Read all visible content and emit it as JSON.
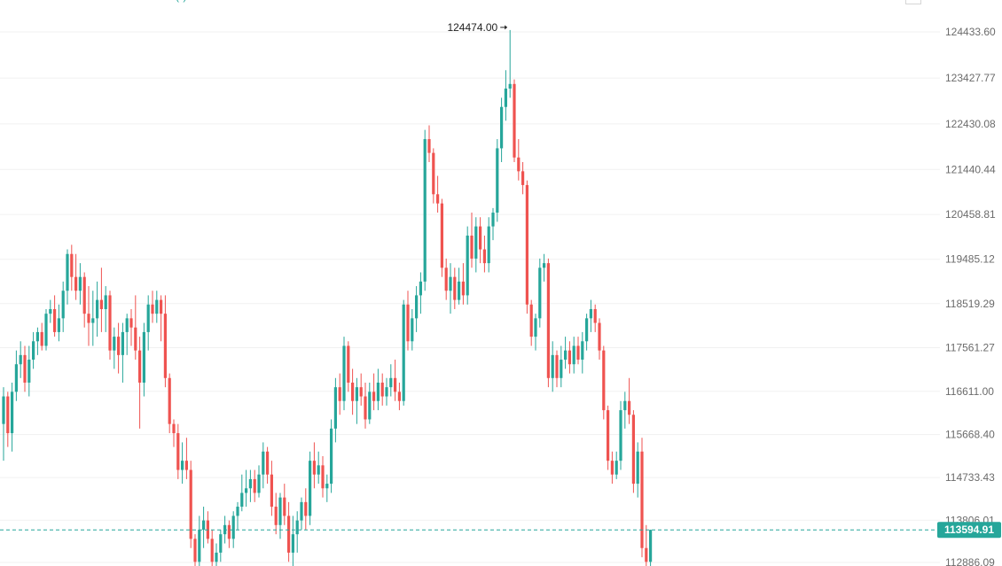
{
  "colors": {
    "up": "#26a69a",
    "down": "#ef5350",
    "current_line": "#26a69a",
    "grid": "#f1f1f1"
  },
  "header_fragment": "(      )",
  "chart_data": {
    "type": "candlestick",
    "title": "",
    "xlabel": "",
    "ylabel": "",
    "y_ticks": [
      "124433.60",
      "123427.77",
      "122430.08",
      "121440.44",
      "120458.81",
      "119485.12",
      "118519.29",
      "117561.27",
      "116611.00",
      "115668.40",
      "114733.43",
      "113806.01",
      "112886.09"
    ],
    "ylim": [
      112886.09,
      124433.6
    ],
    "peak_label": "124474.00",
    "current_price": "113594.91",
    "candles_ohlc": [
      [
        115900,
        116700,
        115100,
        116500
      ],
      [
        116500,
        116600,
        115400,
        115700
      ],
      [
        115700,
        116800,
        115300,
        116600
      ],
      [
        116600,
        117500,
        116400,
        117200
      ],
      [
        117200,
        117700,
        116900,
        117400
      ],
      [
        117400,
        117600,
        116600,
        116800
      ],
      [
        116800,
        117600,
        116500,
        117300
      ],
      [
        117300,
        117900,
        117100,
        117700
      ],
      [
        117700,
        118000,
        117400,
        117900
      ],
      [
        117900,
        118100,
        117500,
        117600
      ],
      [
        117600,
        118400,
        117500,
        118300
      ],
      [
        118300,
        118600,
        118100,
        118400
      ],
      [
        118400,
        118700,
        117800,
        117900
      ],
      [
        117900,
        118500,
        117700,
        118200
      ],
      [
        118200,
        119000,
        117900,
        118800
      ],
      [
        118800,
        119700,
        118500,
        119600
      ],
      [
        119600,
        119800,
        118800,
        119100
      ],
      [
        119100,
        119600,
        118600,
        118800
      ],
      [
        118800,
        119400,
        118500,
        119100
      ],
      [
        119100,
        119200,
        118000,
        118300
      ],
      [
        118300,
        118900,
        117600,
        118100
      ],
      [
        118100,
        118800,
        117600,
        118200
      ],
      [
        118200,
        119000,
        117800,
        118600
      ],
      [
        118600,
        119300,
        117900,
        118400
      ],
      [
        118400,
        118900,
        117900,
        118700
      ],
      [
        118700,
        118800,
        117300,
        117500
      ],
      [
        117500,
        118000,
        117100,
        117800
      ],
      [
        117800,
        118100,
        117000,
        117400
      ],
      [
        117400,
        118100,
        116800,
        117900
      ],
      [
        117900,
        118300,
        117400,
        118200
      ],
      [
        118200,
        118400,
        117600,
        118000
      ],
      [
        118000,
        118700,
        117300,
        117500
      ],
      [
        117500,
        117800,
        115800,
        116800
      ],
      [
        116800,
        118100,
        116500,
        117900
      ],
      [
        117900,
        118700,
        117500,
        118500
      ],
      [
        118500,
        118800,
        118100,
        118300
      ],
      [
        118300,
        118800,
        118100,
        118600
      ],
      [
        118600,
        118700,
        117700,
        118300
      ],
      [
        118300,
        118700,
        116700,
        116900
      ],
      [
        116900,
        117000,
        115700,
        115900
      ],
      [
        115900,
        116000,
        115400,
        115700
      ],
      [
        115700,
        115900,
        114700,
        114900
      ],
      [
        114900,
        115500,
        114600,
        115100
      ],
      [
        115100,
        115600,
        114700,
        114900
      ],
      [
        114900,
        115100,
        113200,
        113400
      ],
      [
        113400,
        113500,
        112700,
        112900
      ],
      [
        112900,
        113900,
        112800,
        113600
      ],
      [
        113600,
        114100,
        113200,
        113800
      ],
      [
        113800,
        114000,
        113300,
        113400
      ],
      [
        113400,
        113600,
        112700,
        112900
      ],
      [
        112900,
        113300,
        112600,
        113100
      ],
      [
        113100,
        113600,
        112900,
        113500
      ],
      [
        113500,
        113900,
        113300,
        113700
      ],
      [
        113700,
        113800,
        113200,
        113400
      ],
      [
        113400,
        114000,
        113200,
        113900
      ],
      [
        113900,
        114200,
        113600,
        114100
      ],
      [
        114100,
        114800,
        114000,
        114400
      ],
      [
        114400,
        114900,
        114100,
        114500
      ],
      [
        114500,
        114900,
        114200,
        114700
      ],
      [
        114700,
        114900,
        114200,
        114400
      ],
      [
        114400,
        115000,
        114300,
        114800
      ],
      [
        114800,
        115500,
        114500,
        115300
      ],
      [
        115300,
        115400,
        114600,
        114800
      ],
      [
        114800,
        115100,
        113900,
        114100
      ],
      [
        114100,
        114400,
        113500,
        113700
      ],
      [
        113700,
        114400,
        113400,
        114300
      ],
      [
        114300,
        114600,
        113700,
        113900
      ],
      [
        113900,
        114200,
        112900,
        113100
      ],
      [
        113100,
        113900,
        112800,
        113500
      ],
      [
        113500,
        114000,
        113100,
        113800
      ],
      [
        113800,
        114300,
        113600,
        114200
      ],
      [
        114200,
        114500,
        113600,
        113900
      ],
      [
        113900,
        115300,
        113700,
        115100
      ],
      [
        115100,
        115500,
        114500,
        114800
      ],
      [
        114800,
        115300,
        114600,
        115000
      ],
      [
        115000,
        115200,
        114300,
        114500
      ],
      [
        114500,
        114800,
        114200,
        114600
      ],
      [
        114600,
        116000,
        114400,
        115800
      ],
      [
        115800,
        116900,
        115500,
        116700
      ],
      [
        116700,
        117000,
        116100,
        116400
      ],
      [
        116400,
        117800,
        116200,
        117600
      ],
      [
        117600,
        117700,
        116600,
        116800
      ],
      [
        116800,
        117100,
        116100,
        116400
      ],
      [
        116400,
        116900,
        115900,
        116700
      ],
      [
        116700,
        117000,
        116300,
        116500
      ],
      [
        116500,
        116800,
        115800,
        116000
      ],
      [
        116000,
        116800,
        115900,
        116600
      ],
      [
        116600,
        117000,
        116200,
        116400
      ],
      [
        116400,
        117100,
        116200,
        116800
      ],
      [
        116800,
        117000,
        116300,
        116500
      ],
      [
        116500,
        116900,
        116300,
        116700
      ],
      [
        116700,
        117200,
        116500,
        116900
      ],
      [
        116900,
        117300,
        116400,
        116600
      ],
      [
        116600,
        116800,
        116200,
        116400
      ],
      [
        116400,
        118600,
        116300,
        118500
      ],
      [
        118500,
        118800,
        117500,
        117700
      ],
      [
        117700,
        118400,
        117500,
        118200
      ],
      [
        118200,
        118900,
        117900,
        118700
      ],
      [
        118700,
        119200,
        118300,
        119000
      ],
      [
        119000,
        122300,
        118800,
        122100
      ],
      [
        122100,
        122400,
        121600,
        121800
      ],
      [
        121800,
        121900,
        120700,
        120900
      ],
      [
        120900,
        121300,
        120500,
        120700
      ],
      [
        120700,
        120800,
        119100,
        119300
      ],
      [
        119300,
        119500,
        118600,
        118800
      ],
      [
        118800,
        119400,
        118300,
        119100
      ],
      [
        119100,
        119300,
        118400,
        118600
      ],
      [
        118600,
        119300,
        118500,
        119000
      ],
      [
        119000,
        119400,
        118500,
        118700
      ],
      [
        118700,
        120200,
        118500,
        120000
      ],
      [
        120000,
        120500,
        119300,
        119500
      ],
      [
        119500,
        120400,
        119200,
        120200
      ],
      [
        120200,
        120400,
        119400,
        119700
      ],
      [
        119700,
        120000,
        119200,
        119400
      ],
      [
        119400,
        120400,
        119200,
        120200
      ],
      [
        120200,
        120600,
        119900,
        120500
      ],
      [
        120500,
        122100,
        120300,
        121900
      ],
      [
        121900,
        123000,
        121600,
        122800
      ],
      [
        122800,
        123600,
        122500,
        123200
      ],
      [
        123200,
        124474,
        123000,
        123300
      ],
      [
        123300,
        123400,
        121600,
        121700
      ],
      [
        121700,
        122100,
        121200,
        121400
      ],
      [
        121400,
        121600,
        120900,
        121100
      ],
      [
        121100,
        121200,
        118300,
        118500
      ],
      [
        118500,
        118600,
        117600,
        117800
      ],
      [
        117800,
        118300,
        117500,
        118200
      ],
      [
        118200,
        119500,
        118000,
        119300
      ],
      [
        119300,
        119600,
        119000,
        119400
      ],
      [
        119400,
        119500,
        116700,
        116900
      ],
      [
        116900,
        117700,
        116600,
        117400
      ],
      [
        117400,
        117500,
        116700,
        116900
      ],
      [
        116900,
        117600,
        116700,
        117300
      ],
      [
        117300,
        117800,
        117100,
        117500
      ],
      [
        117500,
        117700,
        117000,
        117200
      ],
      [
        117200,
        117800,
        117000,
        117600
      ],
      [
        117600,
        117800,
        117200,
        117300
      ],
      [
        117300,
        117900,
        117000,
        117700
      ],
      [
        117700,
        118300,
        117500,
        118200
      ],
      [
        118200,
        118600,
        117900,
        118400
      ],
      [
        118400,
        118500,
        117900,
        118100
      ],
      [
        118100,
        118200,
        117300,
        117500
      ],
      [
        117500,
        117600,
        116000,
        116200
      ],
      [
        116200,
        116300,
        114900,
        115100
      ],
      [
        115100,
        115300,
        114600,
        114800
      ],
      [
        114800,
        115300,
        114700,
        115100
      ],
      [
        115100,
        116400,
        114900,
        116200
      ],
      [
        116200,
        116600,
        115800,
        116400
      ],
      [
        116400,
        116900,
        115900,
        116100
      ],
      [
        116100,
        116200,
        114400,
        114600
      ],
      [
        114600,
        115500,
        114300,
        115300
      ],
      [
        115300,
        115600,
        113000,
        113200
      ],
      [
        113200,
        113700,
        112700,
        112900
      ],
      [
        112900,
        113600,
        112800,
        113594.91
      ]
    ]
  }
}
